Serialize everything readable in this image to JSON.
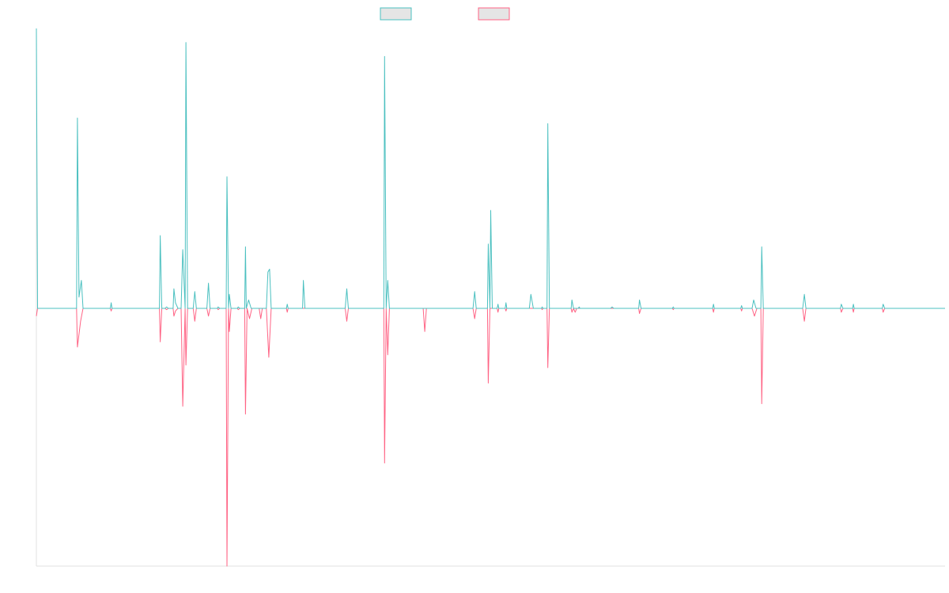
{
  "chart_data": {
    "type": "line",
    "title": "",
    "xlabel": "",
    "ylabel": "",
    "legend": {
      "position": "top-center",
      "labels": [
        "",
        ""
      ]
    },
    "colors": {
      "positive": "#4bc0c0",
      "negative": "#ff6384",
      "swatch_fill": "#e5e5e5",
      "axis": "#e0e0e0"
    },
    "grid": false,
    "ylim": [
      -100,
      100
    ],
    "xlim": [
      0,
      113
    ],
    "series": [
      {
        "values": [
          [
            0,
            100
          ],
          [
            0.15,
            0
          ],
          [
            5,
            0
          ],
          [
            5.1,
            68
          ],
          [
            5.3,
            4
          ],
          [
            5.6,
            10
          ],
          [
            5.8,
            0
          ],
          [
            9.2,
            0
          ],
          [
            9.3,
            2
          ],
          [
            9.4,
            0
          ],
          [
            15.3,
            0
          ],
          [
            15.4,
            26
          ],
          [
            15.6,
            0
          ],
          [
            16,
            0
          ],
          [
            16.2,
            0.5
          ],
          [
            16.4,
            0
          ],
          [
            17,
            0
          ],
          [
            17.1,
            7
          ],
          [
            17.3,
            2
          ],
          [
            17.6,
            0
          ],
          [
            18,
            0
          ],
          [
            18.2,
            21
          ],
          [
            18.5,
            0
          ],
          [
            18.6,
            95
          ],
          [
            18.8,
            0
          ],
          [
            19.5,
            0
          ],
          [
            19.7,
            6
          ],
          [
            19.9,
            0
          ],
          [
            21.2,
            0
          ],
          [
            21.4,
            9
          ],
          [
            21.6,
            0
          ],
          [
            22.5,
            0
          ],
          [
            22.6,
            0.5
          ],
          [
            22.8,
            0
          ],
          [
            23.6,
            0
          ],
          [
            23.7,
            47
          ],
          [
            23.9,
            0
          ],
          [
            24,
            5
          ],
          [
            24.2,
            0
          ],
          [
            25,
            0
          ],
          [
            25.1,
            0.5
          ],
          [
            25.3,
            0
          ],
          [
            25.9,
            0
          ],
          [
            26,
            22
          ],
          [
            26.1,
            0
          ],
          [
            26.4,
            3
          ],
          [
            26.7,
            0
          ],
          [
            28.6,
            0
          ],
          [
            28.8,
            13
          ],
          [
            29,
            14
          ],
          [
            29.2,
            0
          ],
          [
            31.1,
            0
          ],
          [
            31.2,
            1.5
          ],
          [
            31.3,
            0
          ],
          [
            33.1,
            0
          ],
          [
            33.2,
            10
          ],
          [
            33.4,
            0
          ],
          [
            38.4,
            0
          ],
          [
            38.6,
            7
          ],
          [
            38.8,
            0
          ],
          [
            43.2,
            0
          ],
          [
            43.3,
            90
          ],
          [
            43.5,
            0
          ],
          [
            43.7,
            10
          ],
          [
            43.9,
            0
          ],
          [
            54.3,
            0
          ],
          [
            54.5,
            6
          ],
          [
            54.7,
            0
          ],
          [
            56.1,
            0
          ],
          [
            56.2,
            23
          ],
          [
            56.4,
            0
          ],
          [
            56.5,
            35
          ],
          [
            56.7,
            0
          ],
          [
            57.3,
            0
          ],
          [
            57.4,
            1.5
          ],
          [
            57.5,
            0
          ],
          [
            58.3,
            0
          ],
          [
            58.4,
            2
          ],
          [
            58.5,
            0
          ],
          [
            61.3,
            0
          ],
          [
            61.5,
            5
          ],
          [
            61.8,
            0
          ],
          [
            62.8,
            0
          ],
          [
            62.9,
            0.5
          ],
          [
            63,
            0
          ],
          [
            63.5,
            0
          ],
          [
            63.6,
            66
          ],
          [
            63.8,
            0
          ],
          [
            66.5,
            0
          ],
          [
            66.6,
            3
          ],
          [
            66.8,
            0
          ],
          [
            67.4,
            0
          ],
          [
            67.5,
            0.5
          ],
          [
            67.6,
            0
          ],
          [
            71.4,
            0
          ],
          [
            71.6,
            0.5
          ],
          [
            71.8,
            0
          ],
          [
            74.9,
            0
          ],
          [
            75,
            3
          ],
          [
            75.2,
            0
          ],
          [
            79.1,
            0
          ],
          [
            79.2,
            0.5
          ],
          [
            79.3,
            0
          ],
          [
            84.1,
            0
          ],
          [
            84.2,
            1.5
          ],
          [
            84.3,
            0
          ],
          [
            87.6,
            0
          ],
          [
            87.7,
            1
          ],
          [
            87.8,
            0
          ],
          [
            89,
            0
          ],
          [
            89.2,
            3
          ],
          [
            89.5,
            0
          ],
          [
            90.1,
            0
          ],
          [
            90.2,
            22
          ],
          [
            90.4,
            0
          ],
          [
            95.3,
            0
          ],
          [
            95.5,
            5
          ],
          [
            95.7,
            0
          ],
          [
            100,
            0
          ],
          [
            100.1,
            1.5
          ],
          [
            100.3,
            0
          ],
          [
            101.5,
            0
          ],
          [
            101.6,
            1.5
          ],
          [
            101.7,
            0
          ],
          [
            105.2,
            0
          ],
          [
            105.3,
            1.5
          ],
          [
            105.5,
            0
          ],
          [
            113,
            0
          ]
        ]
      },
      {
        "values": [
          [
            0,
            -3
          ],
          [
            0.15,
            0
          ],
          [
            5,
            0
          ],
          [
            5.1,
            -15
          ],
          [
            5.5,
            -5
          ],
          [
            5.8,
            0
          ],
          [
            9.2,
            0
          ],
          [
            9.3,
            -1
          ],
          [
            9.4,
            0
          ],
          [
            15.3,
            0
          ],
          [
            15.4,
            -13
          ],
          [
            15.6,
            0
          ],
          [
            16,
            0
          ],
          [
            16.2,
            -0.5
          ],
          [
            16.4,
            0
          ],
          [
            17,
            0
          ],
          [
            17.1,
            -3
          ],
          [
            17.3,
            -1
          ],
          [
            17.6,
            0
          ],
          [
            18,
            0
          ],
          [
            18.2,
            -38
          ],
          [
            18.5,
            0
          ],
          [
            18.6,
            -22
          ],
          [
            18.8,
            0
          ],
          [
            19.5,
            0
          ],
          [
            19.7,
            -5
          ],
          [
            19.9,
            0
          ],
          [
            21.2,
            0
          ],
          [
            21.4,
            -3
          ],
          [
            21.6,
            0
          ],
          [
            22.5,
            0
          ],
          [
            22.6,
            -0.5
          ],
          [
            22.8,
            0
          ],
          [
            23.6,
            0
          ],
          [
            23.7,
            -100
          ],
          [
            23.9,
            0
          ],
          [
            24,
            -9
          ],
          [
            24.2,
            0
          ],
          [
            25,
            0
          ],
          [
            25.1,
            -0.5
          ],
          [
            25.3,
            0
          ],
          [
            25.9,
            0
          ],
          [
            26,
            -41
          ],
          [
            26.2,
            0
          ],
          [
            26.5,
            -4
          ],
          [
            26.8,
            0
          ],
          [
            27.7,
            0
          ],
          [
            27.9,
            -4
          ],
          [
            28.1,
            0
          ],
          [
            28.6,
            0
          ],
          [
            28.9,
            -19
          ],
          [
            29.2,
            0
          ],
          [
            31.1,
            0
          ],
          [
            31.2,
            -1.5
          ],
          [
            31.3,
            0
          ],
          [
            38.4,
            0
          ],
          [
            38.6,
            -5
          ],
          [
            38.8,
            0
          ],
          [
            43.2,
            0
          ],
          [
            43.3,
            -60
          ],
          [
            43.5,
            0
          ],
          [
            43.7,
            -18
          ],
          [
            43.9,
            0
          ],
          [
            48.1,
            0
          ],
          [
            48.3,
            -9
          ],
          [
            48.5,
            0
          ],
          [
            54.3,
            0
          ],
          [
            54.5,
            -4
          ],
          [
            54.7,
            0
          ],
          [
            56.1,
            0
          ],
          [
            56.2,
            -29
          ],
          [
            56.4,
            0
          ],
          [
            57.3,
            0
          ],
          [
            57.4,
            -1.5
          ],
          [
            57.5,
            0
          ],
          [
            58.3,
            0
          ],
          [
            58.4,
            -1
          ],
          [
            58.5,
            0
          ],
          [
            62.8,
            0
          ],
          [
            62.9,
            -0.5
          ],
          [
            63,
            0
          ],
          [
            63.5,
            0
          ],
          [
            63.6,
            -23
          ],
          [
            63.8,
            0
          ],
          [
            66.5,
            0
          ],
          [
            66.6,
            -1.5
          ],
          [
            66.8,
            0
          ],
          [
            67,
            -1.5
          ],
          [
            67.2,
            0
          ],
          [
            74.9,
            0
          ],
          [
            75,
            -2
          ],
          [
            75.2,
            0
          ],
          [
            79.1,
            0
          ],
          [
            79.2,
            -0.5
          ],
          [
            79.3,
            0
          ],
          [
            84.1,
            0
          ],
          [
            84.2,
            -1.5
          ],
          [
            84.3,
            0
          ],
          [
            87.6,
            0
          ],
          [
            87.7,
            -1
          ],
          [
            87.8,
            0
          ],
          [
            89,
            0
          ],
          [
            89.3,
            -3
          ],
          [
            89.6,
            0
          ],
          [
            90.1,
            0
          ],
          [
            90.2,
            -37
          ],
          [
            90.4,
            0
          ],
          [
            95.3,
            0
          ],
          [
            95.5,
            -5
          ],
          [
            95.7,
            0
          ],
          [
            100,
            0
          ],
          [
            100.1,
            -1.5
          ],
          [
            100.3,
            0
          ],
          [
            101.5,
            0
          ],
          [
            101.6,
            -1.5
          ],
          [
            101.7,
            0
          ],
          [
            105.2,
            0
          ],
          [
            105.3,
            -1.5
          ],
          [
            105.5,
            0
          ],
          [
            113,
            0
          ]
        ]
      }
    ]
  }
}
